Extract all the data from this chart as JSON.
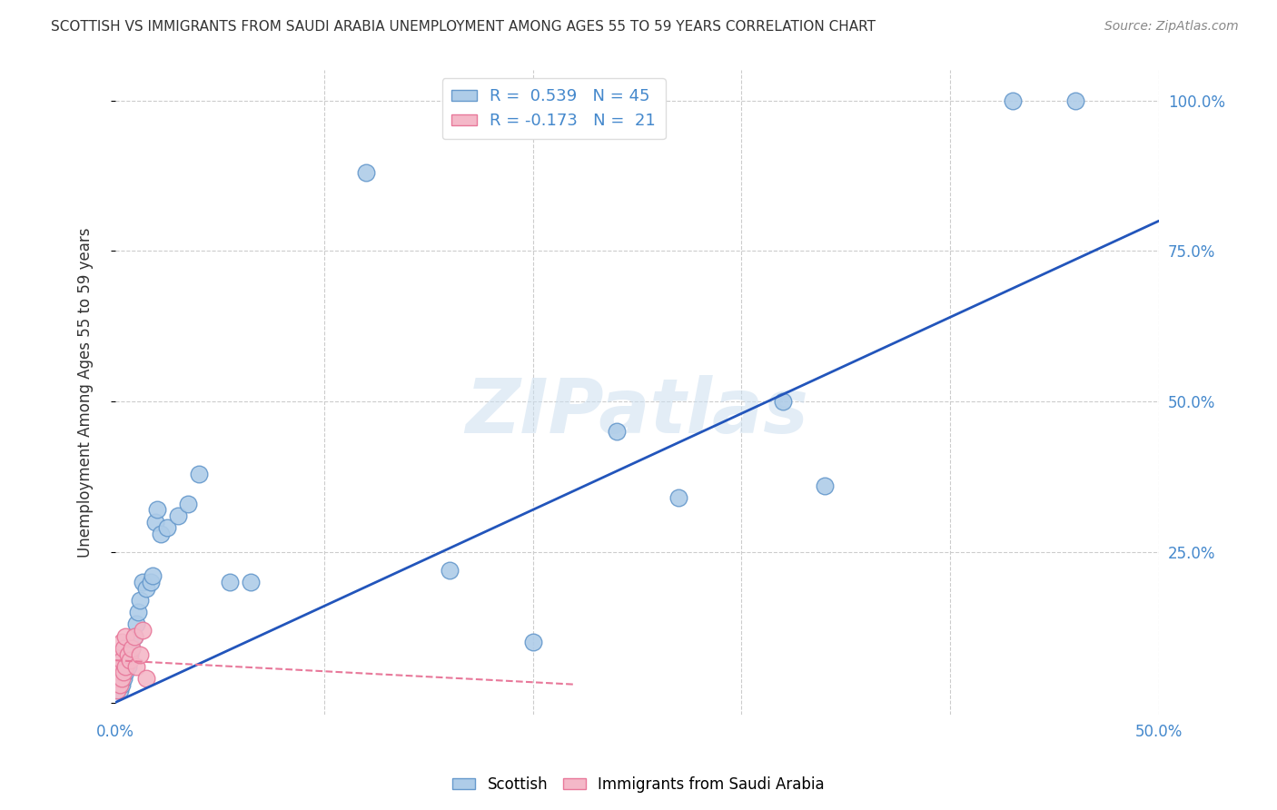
{
  "title": "SCOTTISH VS IMMIGRANTS FROM SAUDI ARABIA UNEMPLOYMENT AMONG AGES 55 TO 59 YEARS CORRELATION CHART",
  "source": "Source: ZipAtlas.com",
  "ylabel": "Unemployment Among Ages 55 to 59 years",
  "xlim": [
    0,
    0.5
  ],
  "ylim": [
    -0.02,
    1.05
  ],
  "xticks": [
    0.0,
    0.1,
    0.2,
    0.3,
    0.4,
    0.5
  ],
  "xticklabels": [
    "0.0%",
    "",
    "",
    "",
    "",
    "50.0%"
  ],
  "yticks": [
    0.0,
    0.25,
    0.5,
    0.75,
    1.0
  ],
  "yticklabels": [
    "",
    "25.0%",
    "50.0%",
    "75.0%",
    "100.0%"
  ],
  "scottish_color": "#aecce8",
  "scottish_edge": "#6699cc",
  "saudi_color": "#f4b8c8",
  "saudi_edge": "#e8789a",
  "blue_line_color": "#2255bb",
  "pink_line_color": "#e8789a",
  "legend_R_scottish": "R =  0.539   N = 45",
  "legend_R_saudi": "R = -0.173   N =  21",
  "watermark_text": "ZIPatlas",
  "scottish_x": [
    0.001,
    0.001,
    0.001,
    0.002,
    0.002,
    0.002,
    0.003,
    0.003,
    0.003,
    0.004,
    0.004,
    0.005,
    0.005,
    0.005,
    0.006,
    0.006,
    0.007,
    0.007,
    0.008,
    0.009,
    0.01,
    0.011,
    0.012,
    0.013,
    0.015,
    0.017,
    0.018,
    0.019,
    0.02,
    0.022,
    0.025,
    0.03,
    0.035,
    0.04,
    0.055,
    0.065,
    0.12,
    0.16,
    0.2,
    0.24,
    0.27,
    0.32,
    0.34,
    0.43,
    0.46
  ],
  "scottish_y": [
    0.02,
    0.03,
    0.04,
    0.02,
    0.04,
    0.05,
    0.03,
    0.05,
    0.07,
    0.04,
    0.06,
    0.05,
    0.07,
    0.09,
    0.06,
    0.08,
    0.08,
    0.1,
    0.09,
    0.11,
    0.13,
    0.15,
    0.17,
    0.2,
    0.19,
    0.2,
    0.21,
    0.3,
    0.32,
    0.28,
    0.29,
    0.31,
    0.33,
    0.38,
    0.2,
    0.2,
    0.88,
    0.22,
    0.1,
    0.45,
    0.34,
    0.5,
    0.36,
    1.0,
    1.0
  ],
  "saudi_x": [
    0.001,
    0.001,
    0.001,
    0.002,
    0.002,
    0.002,
    0.003,
    0.003,
    0.003,
    0.004,
    0.004,
    0.005,
    0.005,
    0.006,
    0.007,
    0.008,
    0.009,
    0.01,
    0.012,
    0.013,
    0.015
  ],
  "saudi_y": [
    0.02,
    0.04,
    0.06,
    0.03,
    0.05,
    0.08,
    0.04,
    0.07,
    0.1,
    0.05,
    0.09,
    0.06,
    0.11,
    0.08,
    0.07,
    0.09,
    0.11,
    0.06,
    0.08,
    0.12,
    0.04
  ],
  "blue_line_x": [
    0.0,
    0.5
  ],
  "blue_line_y": [
    0.0,
    0.8
  ],
  "pink_line_x": [
    0.0,
    0.22
  ],
  "pink_line_y": [
    0.07,
    0.03
  ],
  "grid_color": "#cccccc",
  "title_color": "#333333",
  "axis_tick_color": "#4488cc",
  "background_color": "#ffffff"
}
